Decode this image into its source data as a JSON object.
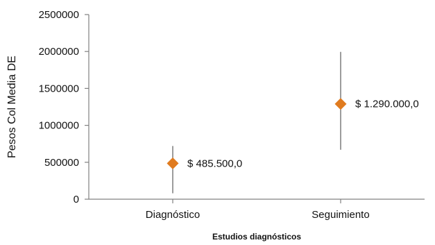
{
  "chart_data": {
    "type": "scatter",
    "title": "",
    "xlabel": "Estudios diagnósticos",
    "ylabel": "Pesos Col Media DE",
    "ylim": [
      0,
      2500000
    ],
    "yticks": [
      "0",
      "500000",
      "1000000",
      "1500000",
      "2000000",
      "2500000"
    ],
    "ytick_values": [
      0,
      500000,
      1000000,
      1500000,
      2000000,
      2500000
    ],
    "categories": [
      "Diagnóstico",
      "Seguimiento"
    ],
    "series": [
      {
        "values": [
          485500,
          1290000
        ],
        "error_low": [
          80000,
          670000
        ],
        "error_high": [
          720000,
          1995000
        ],
        "data_labels": [
          "$ 485.500,0",
          "$ 1.290.000,0"
        ]
      }
    ],
    "marker": "diamond",
    "marker_color": "#E07B1F",
    "grid": false,
    "legend": "none"
  }
}
